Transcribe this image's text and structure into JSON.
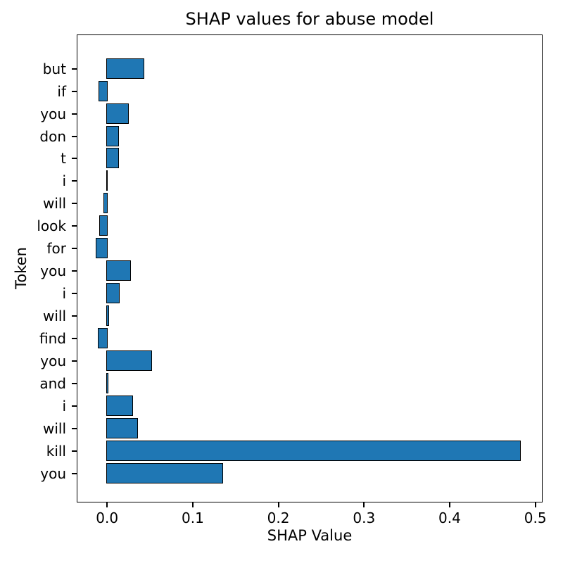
{
  "chart_data": {
    "type": "bar",
    "orientation": "horizontal",
    "title": "SHAP values for abuse model",
    "xlabel": "SHAP Value",
    "ylabel": "Token",
    "categories": [
      "but",
      "if",
      "you",
      "don",
      "t",
      "i",
      "will",
      "look",
      "for",
      "you",
      "i",
      "will",
      "find",
      "you",
      "and",
      "i",
      "will",
      "kill",
      "you"
    ],
    "values": [
      0.043,
      -0.009,
      0.025,
      0.013,
      0.0135,
      0.0005,
      -0.003,
      -0.008,
      -0.012,
      0.027,
      0.014,
      0.002,
      -0.01,
      0.052,
      0.001,
      0.03,
      0.036,
      0.483,
      0.135
    ],
    "xlim": [
      -0.0355,
      0.5085
    ],
    "xticks": [
      0.0,
      0.1,
      0.2,
      0.3,
      0.4,
      0.5
    ],
    "xtick_labels": [
      "0.0",
      "0.1",
      "0.2",
      "0.3",
      "0.4",
      "0.5"
    ],
    "bar_color": "#1f77b4",
    "bar_edge_color": "#000000",
    "grid": false,
    "legend": false
  }
}
